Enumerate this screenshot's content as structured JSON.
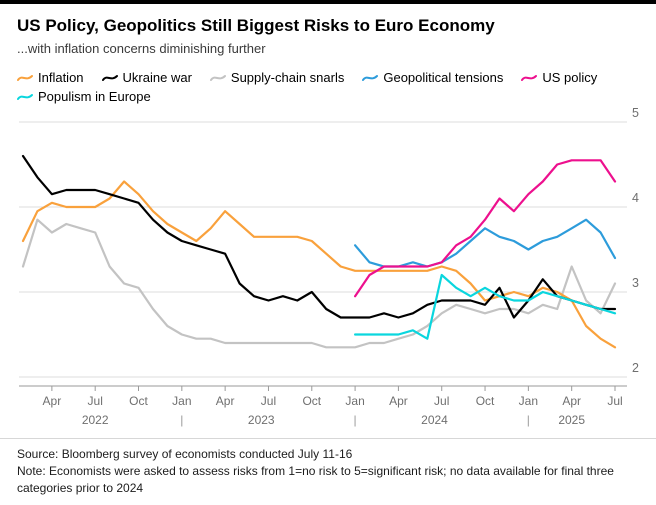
{
  "chart_data": {
    "type": "line",
    "title": "US Policy, Geopolitics Still Biggest Risks to Euro Economy",
    "subtitle": "...with inflation concerns diminishing further",
    "xlabel": "",
    "ylabel": "",
    "ylim": [
      2,
      5
    ],
    "y_ticks": [
      2,
      3,
      4,
      5
    ],
    "grid": "horizontal",
    "legend_position": "top",
    "x_months": [
      "2022-02",
      "2022-03",
      "2022-04",
      "2022-05",
      "2022-06",
      "2022-07",
      "2022-08",
      "2022-09",
      "2022-10",
      "2022-11",
      "2022-12",
      "2023-01",
      "2023-02",
      "2023-03",
      "2023-04",
      "2023-05",
      "2023-06",
      "2023-07",
      "2023-08",
      "2023-09",
      "2023-10",
      "2023-11",
      "2023-12",
      "2024-01",
      "2024-02",
      "2024-03",
      "2024-04",
      "2024-05",
      "2024-06",
      "2024-07",
      "2024-08",
      "2024-09",
      "2024-10",
      "2024-11",
      "2024-12",
      "2025-01",
      "2025-02",
      "2025-03",
      "2025-04",
      "2025-05",
      "2025-06",
      "2025-07"
    ],
    "x_ticks": [
      {
        "i": 2,
        "label": "Apr"
      },
      {
        "i": 5,
        "label": "Jul"
      },
      {
        "i": 8,
        "label": "Oct"
      },
      {
        "i": 11,
        "label": "Jan"
      },
      {
        "i": 14,
        "label": "Apr"
      },
      {
        "i": 17,
        "label": "Jul"
      },
      {
        "i": 20,
        "label": "Oct"
      },
      {
        "i": 23,
        "label": "Jan"
      },
      {
        "i": 26,
        "label": "Apr"
      },
      {
        "i": 29,
        "label": "Jul"
      },
      {
        "i": 32,
        "label": "Oct"
      },
      {
        "i": 35,
        "label": "Jan"
      },
      {
        "i": 38,
        "label": "Apr"
      },
      {
        "i": 41,
        "label": "Jul"
      }
    ],
    "year_labels": [
      {
        "label": "2022",
        "i": 5
      },
      {
        "label": "2023",
        "i": 16.5
      },
      {
        "label": "2024",
        "i": 28.5
      },
      {
        "label": "2025",
        "i": 38
      }
    ],
    "year_separators": [
      11,
      23,
      35
    ],
    "series": [
      {
        "name": "Inflation",
        "color": "#F9A13C",
        "start_index": 0,
        "values": [
          3.6,
          3.95,
          4.05,
          4.0,
          4.0,
          4.0,
          4.1,
          4.3,
          4.15,
          3.95,
          3.8,
          3.7,
          3.6,
          3.75,
          3.95,
          3.8,
          3.65,
          3.65,
          3.65,
          3.65,
          3.6,
          3.45,
          3.3,
          3.25,
          3.25,
          3.25,
          3.25,
          3.25,
          3.25,
          3.3,
          3.25,
          3.1,
          2.9,
          2.95,
          3.0,
          2.95,
          3.05,
          3.0,
          2.9,
          2.6,
          2.45,
          2.35
        ]
      },
      {
        "name": "Ukraine war",
        "color": "#000000",
        "start_index": 0,
        "values": [
          4.6,
          4.35,
          4.15,
          4.2,
          4.2,
          4.2,
          4.15,
          4.1,
          4.05,
          3.85,
          3.7,
          3.6,
          3.55,
          3.5,
          3.45,
          3.1,
          2.95,
          2.9,
          2.95,
          2.9,
          3.0,
          2.8,
          2.7,
          2.7,
          2.7,
          2.75,
          2.7,
          2.75,
          2.85,
          2.9,
          2.9,
          2.9,
          2.85,
          3.05,
          2.7,
          2.9,
          3.15,
          2.95,
          2.9,
          2.85,
          2.8,
          2.8
        ]
      },
      {
        "name": "Supply-chain snarls",
        "color": "#C3C3C3",
        "start_index": 0,
        "values": [
          3.3,
          3.85,
          3.7,
          3.8,
          3.75,
          3.7,
          3.3,
          3.1,
          3.05,
          2.8,
          2.6,
          2.5,
          2.45,
          2.45,
          2.4,
          2.4,
          2.4,
          2.4,
          2.4,
          2.4,
          2.4,
          2.35,
          2.35,
          2.35,
          2.4,
          2.4,
          2.45,
          2.5,
          2.6,
          2.75,
          2.85,
          2.8,
          2.75,
          2.8,
          2.8,
          2.75,
          2.85,
          2.8,
          3.3,
          2.9,
          2.75,
          3.1
        ]
      },
      {
        "name": "Geopolitical tensions",
        "color": "#2D9CDB",
        "start_index": 23,
        "values": [
          3.55,
          3.35,
          3.3,
          3.3,
          3.35,
          3.3,
          3.35,
          3.45,
          3.6,
          3.75,
          3.65,
          3.6,
          3.5,
          3.6,
          3.65,
          3.75,
          3.85,
          3.7,
          3.4
        ]
      },
      {
        "name": "US policy",
        "color": "#ED108E",
        "start_index": 23,
        "values": [
          2.95,
          3.2,
          3.3,
          3.3,
          3.3,
          3.3,
          3.35,
          3.55,
          3.65,
          3.85,
          4.1,
          3.95,
          4.15,
          4.3,
          4.5,
          4.55,
          4.55,
          4.55,
          4.3
        ]
      },
      {
        "name": "Populism in Europe",
        "color": "#0AD6DE",
        "start_index": 23,
        "values": [
          2.5,
          2.5,
          2.5,
          2.5,
          2.55,
          2.45,
          3.2,
          3.05,
          2.95,
          3.05,
          2.95,
          2.9,
          2.9,
          3.0,
          2.95,
          2.9,
          2.85,
          2.8,
          2.75
        ]
      }
    ]
  },
  "footer": {
    "source": "Source: Bloomberg survey of economists conducted July 11-16",
    "note": "Note: Economists were asked to assess risks from 1=no risk to 5=significant risk; no data available for final three categories prior to 2024"
  }
}
